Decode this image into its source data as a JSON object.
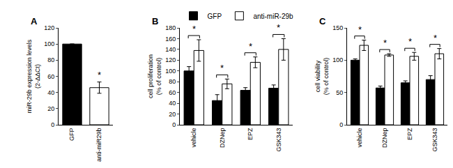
{
  "chart_data": [
    {
      "type": "bar",
      "title": "A",
      "ylabel": "miR-29b expression levels (2-ΔΔCt)",
      "categories": [
        "GFP",
        "anti-miR29b"
      ],
      "values": [
        100,
        46
      ],
      "errors": [
        0,
        7
      ],
      "colors": [
        "#000000",
        "#ffffff"
      ],
      "ylim": [
        0,
        120
      ],
      "yticks": [
        0,
        20,
        40,
        60,
        80,
        100,
        120
      ],
      "annotations": [
        {
          "category": "anti-miR29b",
          "text": "*"
        }
      ]
    },
    {
      "type": "bar",
      "title": "B",
      "ylabel": "cell proliferation (% of control)",
      "categories": [
        "vehicle",
        "DZNep",
        "EPZ",
        "GSK343"
      ],
      "series": [
        {
          "name": "GFP",
          "color": "#000000",
          "values": [
            100,
            45,
            64,
            68
          ],
          "errors": [
            8,
            11,
            5,
            6
          ]
        },
        {
          "name": "anti-miR-29b",
          "color": "#ffffff",
          "values": [
            138,
            76,
            116,
            140
          ],
          "errors": [
            20,
            9,
            10,
            20
          ]
        }
      ],
      "legend": "top",
      "ylim": [
        0,
        180
      ],
      "yticks": [
        0,
        20,
        40,
        60,
        80,
        100,
        120,
        140,
        160,
        180
      ],
      "annotations": [
        {
          "category": "vehicle",
          "text": "*"
        },
        {
          "category": "DZNep",
          "text": "*"
        },
        {
          "category": "EPZ",
          "text": "*"
        },
        {
          "category": "GSK343",
          "text": "*"
        }
      ]
    },
    {
      "type": "bar",
      "title": "C",
      "ylabel": "cell viability (% of control)",
      "categories": [
        "vehicle",
        "DZNep",
        "EPZ",
        "GSK343"
      ],
      "series": [
        {
          "name": "GFP",
          "color": "#000000",
          "values": [
            100,
            57,
            65,
            70
          ],
          "errors": [
            2,
            3,
            3,
            6
          ]
        },
        {
          "name": "anti-miR-29b",
          "color": "#ffffff",
          "values": [
            123,
            108,
            106,
            110
          ],
          "errors": [
            8,
            2,
            6,
            8
          ]
        }
      ],
      "ylim": [
        0,
        150
      ],
      "yticks": [
        0,
        50,
        100,
        150
      ],
      "annotations": [
        {
          "category": "vehicle",
          "text": "*"
        },
        {
          "category": "DZNep",
          "text": "*"
        },
        {
          "category": "EPZ",
          "text": "*"
        },
        {
          "category": "GSK343",
          "text": "*"
        }
      ]
    }
  ]
}
